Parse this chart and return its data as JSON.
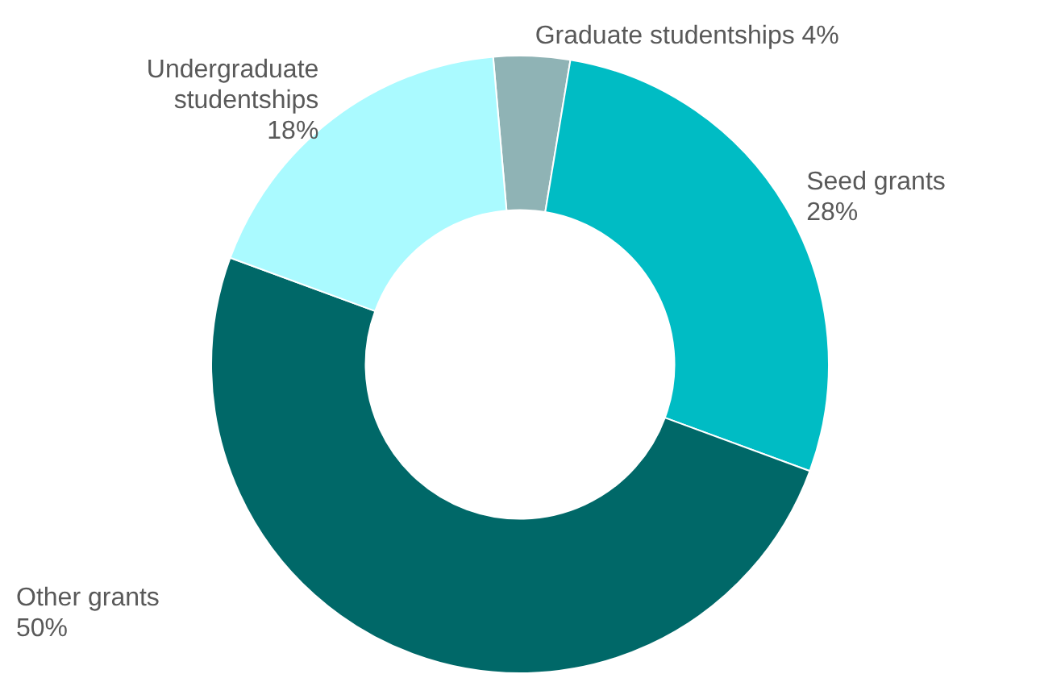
{
  "chart_data": {
    "type": "donut",
    "categories": [
      "Graduate studentships",
      "Seed grants",
      "Other grants",
      "Undergraduate studentships"
    ],
    "values": [
      4,
      28,
      50,
      18
    ],
    "value_labels": [
      "4%",
      "28%",
      "50%",
      "18%"
    ],
    "colors": [
      "#8fb3b5",
      "#00bcc4",
      "#006868",
      "#aafaff"
    ],
    "legend": false
  }
}
